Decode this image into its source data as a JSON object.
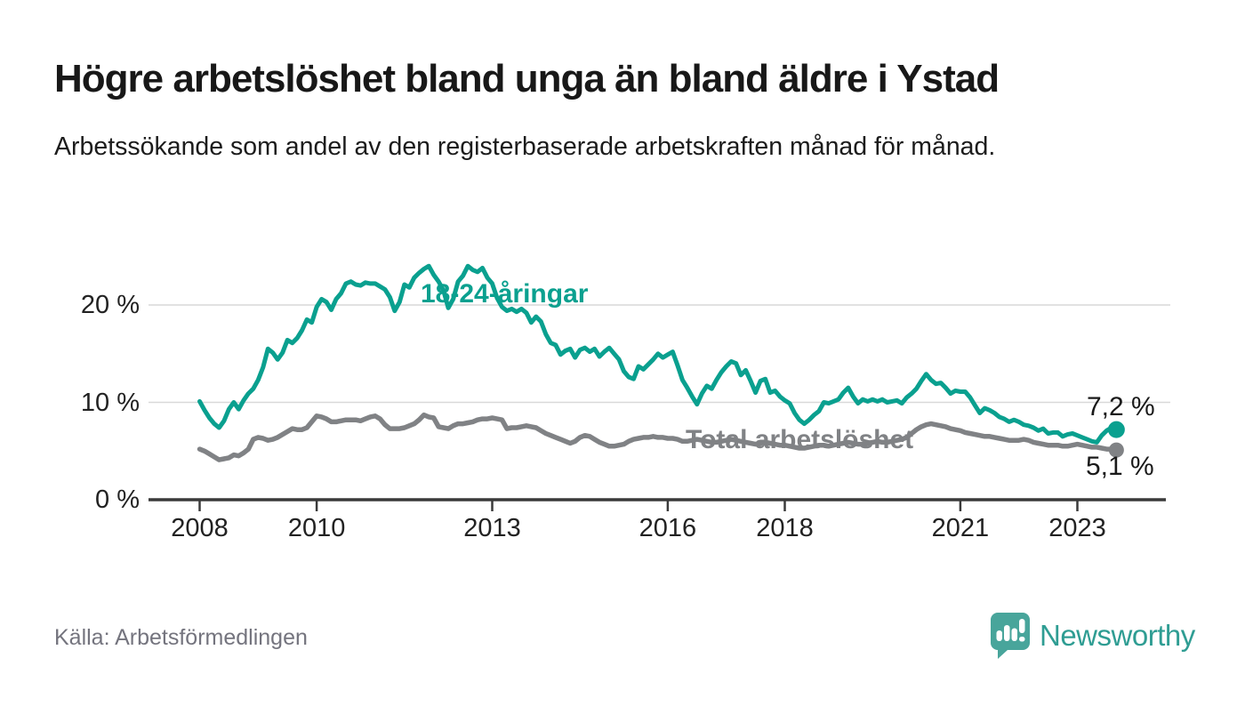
{
  "header": {
    "title": "Högre arbetslöshet bland unga än bland äldre i Ystad",
    "subtitle": "Arbetssökande som andel av den registerbaserade arbetskraften månad för månad."
  },
  "source": {
    "label": "Källa: Arbetsförmedlingen"
  },
  "branding": {
    "name": "Newsworthy",
    "icon": "speech-bubble-bar-chart",
    "icon_color": "#48a59b",
    "text_color": "#2f9d93"
  },
  "colors": {
    "youth_line": "#0aa08f",
    "total_line": "#808285",
    "gridline": "#d9d9d9",
    "axis": "#3a3a3a",
    "text_dark": "#191919",
    "muted_text": "#74747e"
  },
  "chart_data": {
    "type": "line",
    "title": "Högre arbetslöshet bland unga än bland äldre i Ystad",
    "subtitle": "Arbetssökande som andel av den registerbaserade arbetskraften månad för månad.",
    "frequency": "monthly",
    "x_start": "2008-01",
    "x_end": "2023-09",
    "xlabel": "",
    "ylabel": "",
    "ylim": [
      0,
      25
    ],
    "y_gridlines": [
      10,
      20
    ],
    "legend_position": "inline-labels",
    "y_ticks": [
      {
        "value": 20,
        "label": "20 %"
      },
      {
        "value": 10,
        "label": "10 %"
      },
      {
        "value": 0,
        "label": "0 %"
      }
    ],
    "x_ticks": [
      {
        "year": 2008,
        "label": "2008"
      },
      {
        "year": 2010,
        "label": "2010"
      },
      {
        "year": 2013,
        "label": "2013"
      },
      {
        "year": 2016,
        "label": "2016"
      },
      {
        "year": 2018,
        "label": "2018"
      },
      {
        "year": 2021,
        "label": "2021"
      },
      {
        "year": 2023,
        "label": "2023"
      }
    ],
    "series": [
      {
        "name": "18-24-åringar",
        "color": "#0aa08f",
        "end_label": "7,2 %",
        "last_value": 7.2,
        "values": [
          10.1,
          9.2,
          8.4,
          7.8,
          7.4,
          8.1,
          9.3,
          10,
          9.3,
          10.2,
          10.9,
          11.4,
          12.3,
          13.6,
          15.5,
          15.1,
          14.4,
          15.1,
          16.4,
          16.1,
          16.6,
          17.4,
          18.5,
          18.2,
          19.8,
          20.6,
          20.3,
          19.5,
          20.6,
          21.2,
          22.2,
          22.4,
          22.1,
          22,
          22.3,
          22.2,
          22.2,
          21.9,
          21.6,
          20.8,
          19.4,
          20.3,
          22.1,
          21.8,
          22.8,
          23.3,
          23.7,
          24,
          23.1,
          22.4,
          21.5,
          19.7,
          20.6,
          22.4,
          23,
          24,
          23.6,
          23.4,
          23.8,
          22.8,
          22.2,
          20.7,
          19.8,
          19.4,
          19.6,
          19.3,
          19.6,
          19.2,
          18.2,
          18.8,
          18.3,
          17,
          16.1,
          15.9,
          14.9,
          15.3,
          15.5,
          14.6,
          15.4,
          15.6,
          15.2,
          15.5,
          14.7,
          15.2,
          15.6,
          15,
          14.4,
          13.2,
          12.6,
          12.4,
          13.7,
          13.4,
          13.9,
          14.4,
          15,
          14.6,
          14.9,
          15.2,
          13.8,
          12.3,
          11.5,
          10.6,
          9.8,
          10.9,
          11.7,
          11.4,
          12.3,
          13.1,
          13.7,
          14.2,
          14,
          12.8,
          13.3,
          12.2,
          11,
          12.2,
          12.4,
          11,
          11.2,
          10.6,
          10.2,
          9.9,
          8.9,
          8.2,
          7.8,
          8.2,
          8.7,
          9.1,
          10,
          9.9,
          10.1,
          10.3,
          11,
          11.5,
          10.6,
          9.9,
          10.3,
          10.1,
          10.3,
          10.1,
          10.3,
          10,
          10.1,
          10.2,
          9.9,
          10.5,
          10.9,
          11.4,
          12.2,
          12.9,
          12.3,
          11.9,
          12,
          11.5,
          10.9,
          11.2,
          11.1,
          11.1,
          10.5,
          9.7,
          8.9,
          9.4,
          9.2,
          8.9,
          8.5,
          8.3,
          8,
          8.2,
          8,
          7.7,
          7.6,
          7.4,
          7.1,
          7.3,
          6.8,
          6.9,
          6.9,
          6.5,
          6.7,
          6.8,
          6.6,
          6.4,
          6.2,
          6,
          5.9,
          6.6,
          7.1,
          7.4,
          7.2
        ]
      },
      {
        "name": "Total arbetslöshet",
        "color": "#808285",
        "end_label": "5,1 %",
        "last_value": 5.1,
        "values": [
          5.2,
          5,
          4.7,
          4.4,
          4.1,
          4.2,
          4.3,
          4.6,
          4.5,
          4.8,
          5.2,
          6.2,
          6.4,
          6.3,
          6.1,
          6.2,
          6.4,
          6.7,
          7,
          7.3,
          7.2,
          7.2,
          7.4,
          8,
          8.6,
          8.5,
          8.3,
          8,
          8,
          8.1,
          8.2,
          8.2,
          8.2,
          8.1,
          8.3,
          8.5,
          8.6,
          8.3,
          7.7,
          7.3,
          7.3,
          7.3,
          7.4,
          7.6,
          7.8,
          8.2,
          8.7,
          8.5,
          8.4,
          7.5,
          7.4,
          7.3,
          7.6,
          7.8,
          7.8,
          7.9,
          8,
          8.2,
          8.3,
          8.3,
          8.4,
          8.3,
          8.2,
          7.3,
          7.4,
          7.4,
          7.5,
          7.6,
          7.5,
          7.4,
          7.1,
          6.8,
          6.6,
          6.4,
          6.2,
          6,
          5.8,
          6,
          6.4,
          6.6,
          6.5,
          6.2,
          5.9,
          5.7,
          5.5,
          5.5,
          5.6,
          5.7,
          6,
          6.2,
          6.3,
          6.4,
          6.4,
          6.5,
          6.4,
          6.4,
          6.3,
          6.3,
          6.2,
          6,
          6,
          6.1,
          6.2,
          6.1,
          6,
          5.9,
          5.9,
          6,
          6.1,
          6.2,
          6.1,
          6,
          5.9,
          5.8,
          5.7,
          5.8,
          5.9,
          5.8,
          5.7,
          5.6,
          5.6,
          5.5,
          5.4,
          5.3,
          5.3,
          5.4,
          5.5,
          5.6,
          5.6,
          5.5,
          5.6,
          5.7,
          5.8,
          5.9,
          5.8,
          5.7,
          5.7,
          5.8,
          5.9,
          6,
          5.9,
          5.9,
          6,
          6.1,
          6.2,
          6.4,
          6.8,
          7.2,
          7.5,
          7.7,
          7.8,
          7.7,
          7.6,
          7.5,
          7.3,
          7.2,
          7.1,
          6.9,
          6.8,
          6.7,
          6.6,
          6.5,
          6.5,
          6.4,
          6.3,
          6.2,
          6.1,
          6.1,
          6.1,
          6.2,
          6.1,
          5.9,
          5.8,
          5.7,
          5.6,
          5.6,
          5.6,
          5.5,
          5.5,
          5.6,
          5.7,
          5.6,
          5.5,
          5.4,
          5.4,
          5.3,
          5.2,
          5.2,
          5.1
        ]
      }
    ]
  }
}
